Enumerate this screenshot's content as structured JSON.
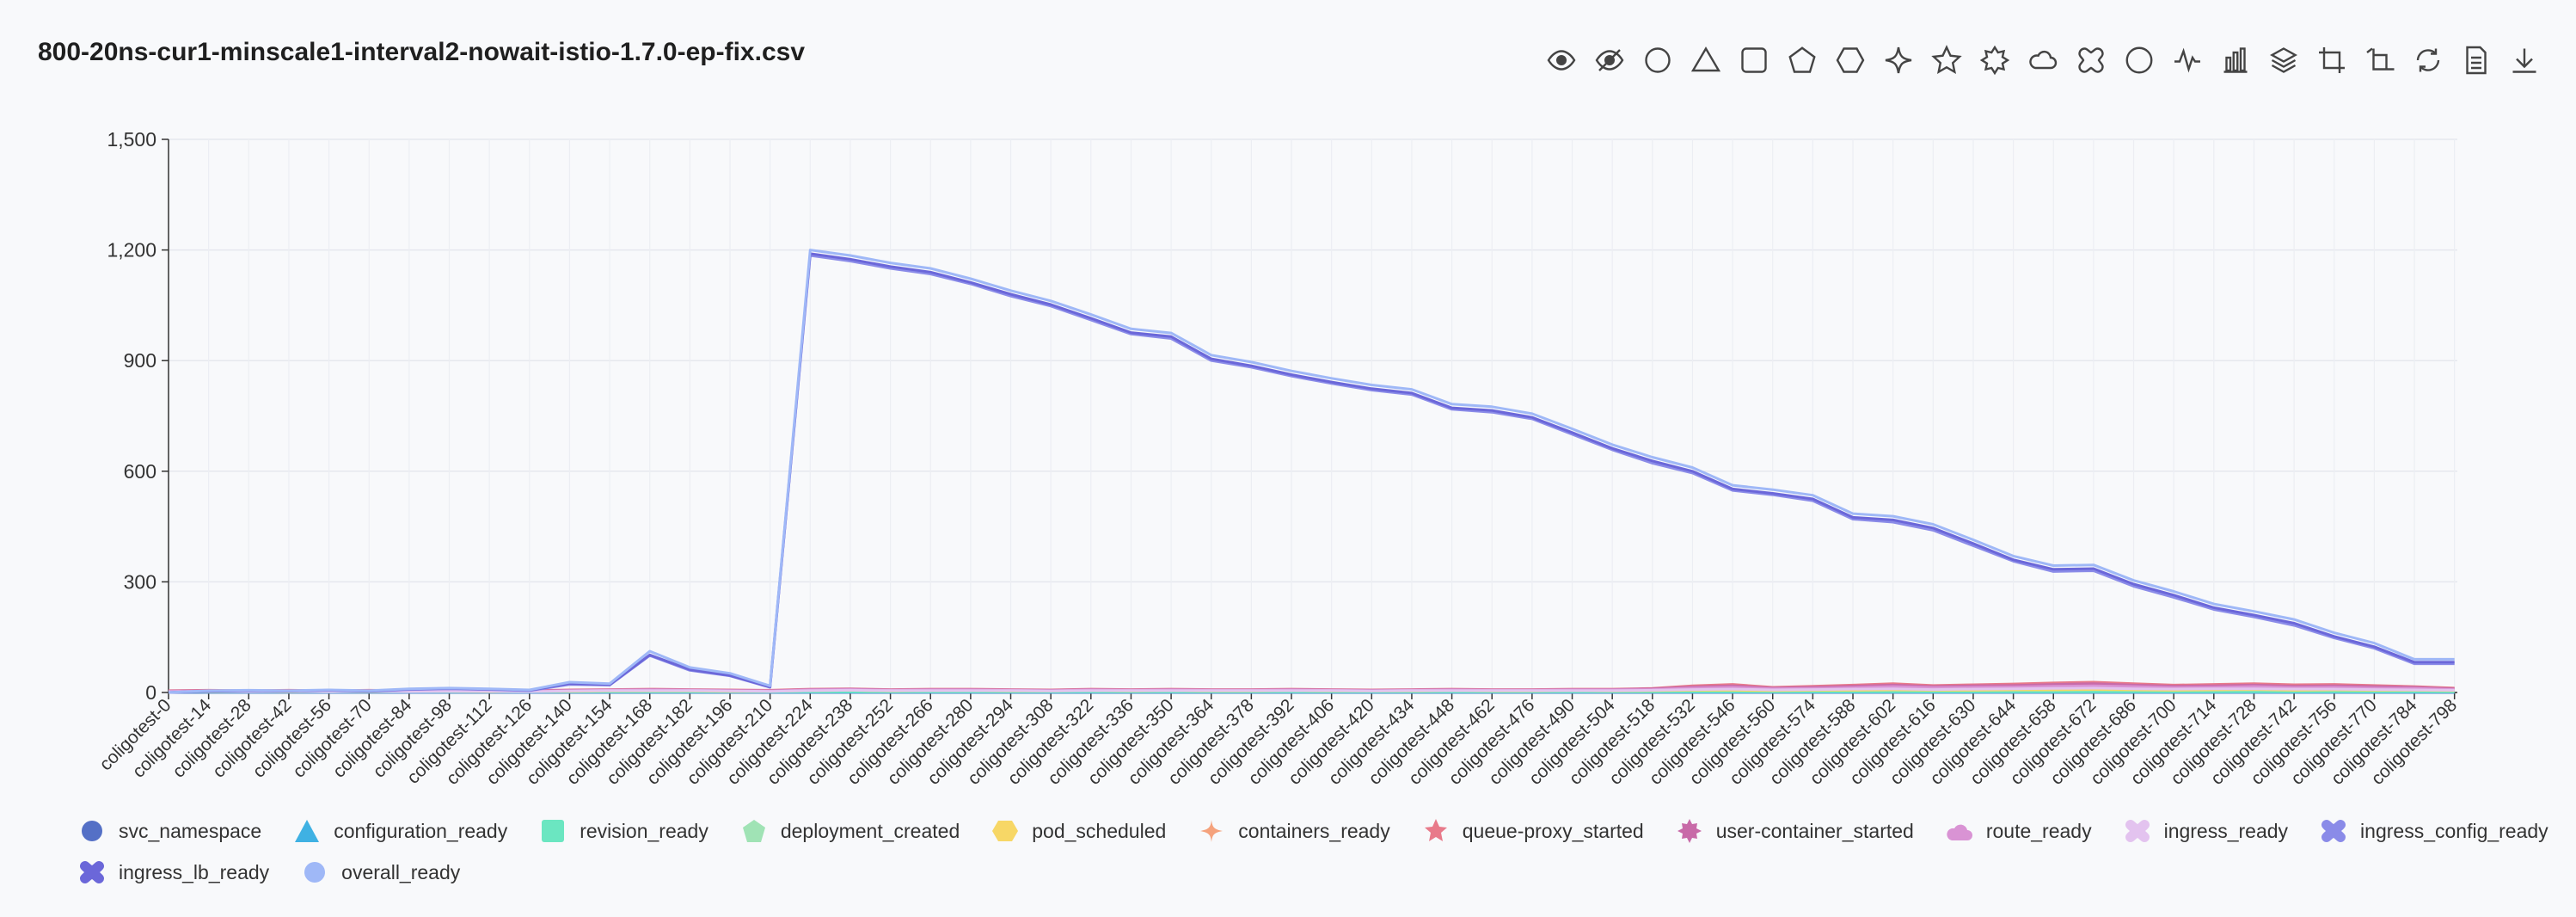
{
  "title": "800-20ns-cur1-minscale1-interval2-nowait-istio-1.7.0-ep-fix.csv",
  "toolbar": [
    {
      "name": "show-all-icon"
    },
    {
      "name": "hide-all-icon"
    },
    {
      "name": "circle-symbol-icon"
    },
    {
      "name": "triangle-symbol-icon"
    },
    {
      "name": "rect-symbol-icon"
    },
    {
      "name": "pentagon-symbol-icon"
    },
    {
      "name": "hexagon-symbol-icon"
    },
    {
      "name": "sparkle-symbol-icon"
    },
    {
      "name": "star-symbol-icon"
    },
    {
      "name": "burst-symbol-icon"
    },
    {
      "name": "cloud-symbol-icon"
    },
    {
      "name": "cross-symbol-icon"
    },
    {
      "name": "empty-circle-symbol-icon"
    },
    {
      "name": "line-chart-icon"
    },
    {
      "name": "bar-chart-icon"
    },
    {
      "name": "stack-icon"
    },
    {
      "name": "crop-icon"
    },
    {
      "name": "undo-zoom-icon"
    },
    {
      "name": "restore-icon"
    },
    {
      "name": "data-view-icon"
    },
    {
      "name": "download-icon"
    }
  ],
  "chart_data": {
    "type": "line",
    "title": "800-20ns-cur1-minscale1-interval2-nowait-istio-1.7.0-ep-fix.csv",
    "xlabel": "",
    "ylabel": "",
    "ylim": [
      0,
      1500
    ],
    "yticks": [
      0,
      300,
      600,
      900,
      1200,
      1500
    ],
    "ytick_labels": [
      "0",
      "300",
      "600",
      "900",
      "1,200",
      "1,500"
    ],
    "x_tick_labels": [
      "coligotest-0",
      "coligotest-14",
      "coligotest-28",
      "coligotest-42",
      "coligotest-56",
      "coligotest-70",
      "coligotest-84",
      "coligotest-98",
      "coligotest-112",
      "coligotest-126",
      "coligotest-140",
      "coligotest-154",
      "coligotest-168",
      "coligotest-182",
      "coligotest-196",
      "coligotest-210",
      "coligotest-224",
      "coligotest-238",
      "coligotest-252",
      "coligotest-266",
      "coligotest-280",
      "coligotest-294",
      "coligotest-308",
      "coligotest-322",
      "coligotest-336",
      "coligotest-350",
      "coligotest-364",
      "coligotest-378",
      "coligotest-392",
      "coligotest-406",
      "coligotest-420",
      "coligotest-434",
      "coligotest-448",
      "coligotest-462",
      "coligotest-476",
      "coligotest-490",
      "coligotest-504",
      "coligotest-518",
      "coligotest-532",
      "coligotest-546",
      "coligotest-560",
      "coligotest-574",
      "coligotest-588",
      "coligotest-602",
      "coligotest-616",
      "coligotest-630",
      "coligotest-644",
      "coligotest-658",
      "coligotest-672",
      "coligotest-686",
      "coligotest-700",
      "coligotest-714",
      "coligotest-728",
      "coligotest-742",
      "coligotest-756",
      "coligotest-770",
      "coligotest-784",
      "coligotest-798"
    ],
    "x_index": [
      0,
      14,
      28,
      42,
      56,
      70,
      84,
      98,
      112,
      126,
      140,
      154,
      168,
      182,
      196,
      210,
      224,
      238,
      252,
      266,
      280,
      294,
      308,
      322,
      336,
      350,
      364,
      378,
      392,
      406,
      420,
      434,
      448,
      462,
      476,
      490,
      504,
      518,
      532,
      546,
      560,
      574,
      588,
      602,
      616,
      630,
      644,
      658,
      672,
      686,
      700,
      714,
      728,
      742,
      756,
      770,
      784,
      798
    ],
    "x_max": 799,
    "series": [
      {
        "name": "svc_namespace",
        "color": "#5470c6",
        "marker": "circle",
        "values": [
          0,
          0,
          0,
          0,
          0,
          0,
          0,
          0,
          0,
          0,
          0,
          0,
          0,
          0,
          0,
          0,
          0,
          0,
          0,
          0,
          0,
          0,
          0,
          0,
          0,
          0,
          0,
          0,
          0,
          0,
          0,
          0,
          0,
          0,
          0,
          0,
          0,
          0,
          0,
          0,
          0,
          0,
          0,
          0,
          0,
          0,
          0,
          0,
          0,
          0,
          0,
          0,
          0,
          0,
          0,
          0,
          0,
          0
        ]
      },
      {
        "name": "configuration_ready",
        "color": "#3fb1e3",
        "marker": "triangle",
        "values": [
          1,
          1,
          1,
          1,
          1,
          1,
          1,
          1,
          1,
          1,
          1,
          1,
          1,
          1,
          1,
          1,
          1,
          1,
          1,
          1,
          1,
          1,
          1,
          1,
          1,
          1,
          1,
          1,
          1,
          1,
          1,
          1,
          1,
          1,
          1,
          1,
          1,
          1,
          1,
          1,
          1,
          1,
          1,
          1,
          1,
          1,
          1,
          1,
          1,
          1,
          1,
          1,
          1,
          1,
          1,
          1,
          1,
          1
        ]
      },
      {
        "name": "revision_ready",
        "color": "#6be6c1",
        "marker": "rect",
        "values": [
          2,
          2,
          2,
          2,
          2,
          2,
          2,
          2,
          2,
          2,
          2,
          2,
          2,
          2,
          2,
          2,
          2,
          2,
          2,
          2,
          2,
          2,
          2,
          2,
          2,
          2,
          2,
          2,
          2,
          2,
          2,
          2,
          2,
          2,
          2,
          2,
          2,
          2,
          2,
          2,
          2,
          2,
          2,
          2,
          2,
          2,
          2,
          2,
          2,
          2,
          2,
          2,
          2,
          2,
          2,
          2,
          2,
          2
        ]
      },
      {
        "name": "deployment_created",
        "color": "#a0e3b5",
        "marker": "pentagon",
        "values": [
          3,
          3,
          3,
          3,
          4,
          3,
          3,
          4,
          3,
          3,
          4,
          5,
          6,
          5,
          4,
          3,
          6,
          8,
          5,
          6,
          7,
          5,
          4,
          6,
          5,
          6,
          5,
          5,
          6,
          5,
          4,
          5,
          6,
          5,
          5,
          6,
          5,
          6,
          7,
          8,
          6,
          7,
          8,
          9,
          7,
          8,
          9,
          8,
          10,
          9,
          8,
          9,
          10,
          8,
          9,
          8,
          7,
          6
        ]
      },
      {
        "name": "pod_scheduled",
        "color": "#f7d766",
        "marker": "hexagon",
        "values": [
          2,
          2,
          3,
          2,
          3,
          2,
          3,
          3,
          2,
          3,
          3,
          4,
          4,
          4,
          3,
          3,
          5,
          6,
          4,
          5,
          5,
          4,
          4,
          5,
          4,
          5,
          4,
          4,
          5,
          4,
          4,
          4,
          5,
          4,
          4,
          5,
          4,
          5,
          6,
          6,
          5,
          6,
          6,
          7,
          6,
          6,
          7,
          7,
          8,
          7,
          6,
          7,
          8,
          6,
          7,
          6,
          6,
          5
        ]
      },
      {
        "name": "containers_ready",
        "color": "#f5a27c",
        "marker": "sparkle",
        "values": [
          4,
          5,
          4,
          5,
          4,
          5,
          4,
          5,
          5,
          4,
          6,
          7,
          8,
          7,
          6,
          5,
          8,
          9,
          7,
          8,
          8,
          7,
          6,
          8,
          7,
          8,
          7,
          7,
          8,
          7,
          6,
          7,
          8,
          7,
          7,
          8,
          8,
          9,
          12,
          14,
          10,
          12,
          14,
          16,
          13,
          15,
          16,
          17,
          18,
          16,
          14,
          15,
          16,
          14,
          15,
          13,
          12,
          10
        ]
      },
      {
        "name": "queue-proxy_started",
        "color": "#e87a8a",
        "marker": "star",
        "values": [
          5,
          6,
          5,
          6,
          5,
          6,
          5,
          6,
          6,
          5,
          7,
          8,
          9,
          8,
          7,
          6,
          9,
          10,
          8,
          9,
          9,
          8,
          7,
          9,
          8,
          9,
          8,
          8,
          9,
          8,
          7,
          8,
          9,
          8,
          8,
          9,
          9,
          11,
          18,
          22,
          14,
          17,
          20,
          24,
          19,
          21,
          23,
          26,
          28,
          24,
          20,
          22,
          24,
          21,
          22,
          19,
          16,
          12
        ]
      },
      {
        "name": "user-container_started",
        "color": "#c86aa8",
        "marker": "burst",
        "values": [
          4,
          5,
          4,
          5,
          4,
          5,
          4,
          5,
          5,
          4,
          6,
          7,
          8,
          7,
          6,
          5,
          8,
          9,
          7,
          8,
          8,
          7,
          6,
          8,
          7,
          8,
          7,
          7,
          8,
          7,
          6,
          7,
          8,
          7,
          7,
          8,
          8,
          10,
          15,
          18,
          12,
          14,
          17,
          20,
          16,
          18,
          19,
          22,
          24,
          20,
          17,
          18,
          20,
          17,
          18,
          16,
          14,
          10
        ]
      },
      {
        "name": "route_ready",
        "color": "#d993d4",
        "marker": "cloud",
        "values": [
          3,
          4,
          3,
          4,
          3,
          4,
          3,
          4,
          4,
          3,
          5,
          6,
          7,
          6,
          5,
          4,
          7,
          8,
          6,
          7,
          7,
          6,
          5,
          7,
          6,
          7,
          6,
          6,
          7,
          6,
          5,
          6,
          7,
          6,
          6,
          7,
          7,
          8,
          12,
          14,
          10,
          11,
          13,
          16,
          13,
          14,
          15,
          17,
          18,
          16,
          13,
          14,
          16,
          13,
          14,
          12,
          11,
          8
        ]
      },
      {
        "name": "ingress_ready",
        "color": "#e3c3ef",
        "marker": "cross-soft",
        "values": [
          2,
          3,
          2,
          3,
          2,
          3,
          2,
          3,
          3,
          2,
          4,
          5,
          5,
          5,
          4,
          3,
          5,
          6,
          5,
          5,
          5,
          5,
          4,
          5,
          5,
          5,
          5,
          5,
          5,
          5,
          4,
          5,
          5,
          5,
          5,
          5,
          5,
          6,
          8,
          9,
          7,
          8,
          9,
          10,
          8,
          9,
          10,
          11,
          12,
          10,
          9,
          10,
          10,
          9,
          9,
          8,
          7,
          6
        ]
      },
      {
        "name": "ingress_config_ready",
        "color": "#8a8be8",
        "marker": "cross",
        "values": [
          0,
          3,
          5,
          4,
          6,
          3,
          8,
          10,
          8,
          5,
          22,
          20,
          100,
          60,
          45,
          14,
          1185,
          1170,
          1150,
          1135,
          1108,
          1075,
          1048,
          1010,
          972,
          960,
          900,
          882,
          858,
          838,
          820,
          808,
          768,
          760,
          742,
          700,
          658,
          622,
          595,
          548,
          536,
          520,
          470,
          462,
          440,
          398,
          356,
          328,
          330,
          288,
          258,
          225,
          205,
          182,
          148,
          120,
          78,
          78
        ]
      },
      {
        "name": "ingress_lb_ready",
        "color": "#6b67d9",
        "marker": "cross",
        "values": [
          0,
          4,
          5,
          4,
          6,
          4,
          9,
          11,
          9,
          6,
          24,
          21,
          102,
          62,
          46,
          15,
          1190,
          1175,
          1155,
          1140,
          1112,
          1080,
          1052,
          1015,
          976,
          965,
          905,
          886,
          862,
          842,
          824,
          812,
          772,
          765,
          746,
          705,
          662,
          628,
          600,
          552,
          540,
          525,
          475,
          468,
          446,
          404,
          360,
          334,
          336,
          294,
          264,
          230,
          210,
          188,
          152,
          124,
          82,
          82
        ]
      },
      {
        "name": "overall_ready",
        "color": "#9fb8f7",
        "marker": "circle",
        "values": [
          0,
          5,
          6,
          5,
          7,
          5,
          10,
          12,
          10,
          7,
          28,
          24,
          112,
          68,
          52,
          18,
          1200,
          1185,
          1165,
          1150,
          1122,
          1090,
          1062,
          1025,
          986,
          975,
          915,
          896,
          872,
          852,
          834,
          822,
          782,
          775,
          756,
          715,
          672,
          638,
          610,
          562,
          550,
          535,
          485,
          478,
          456,
          414,
          370,
          344,
          346,
          304,
          274,
          240,
          220,
          198,
          162,
          134,
          90,
          90
        ]
      }
    ]
  }
}
